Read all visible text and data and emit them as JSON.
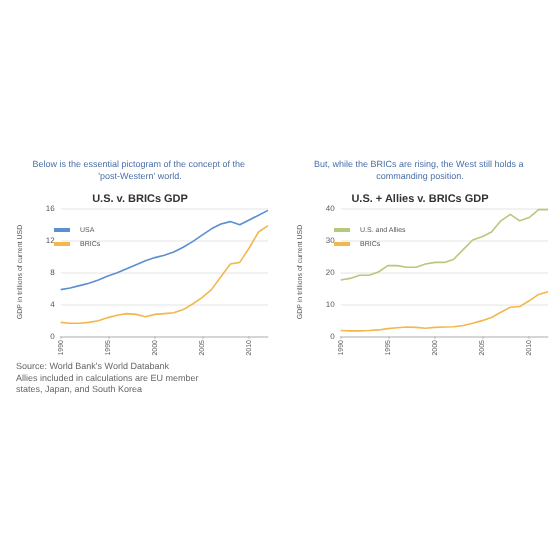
{
  "chart_data": [
    {
      "type": "line",
      "subtitle": "Below is the essential pictogram of the concept of the 'post-Western' world.",
      "title": "U.S. v. BRICs GDP",
      "ylabel": "GDP in trillions of current USD",
      "x": [
        1990,
        1991,
        1992,
        1993,
        1994,
        1995,
        1996,
        1997,
        1998,
        1999,
        2000,
        2001,
        2002,
        2003,
        2004,
        2005,
        2006,
        2007,
        2008,
        2009,
        2010,
        2011,
        2012
      ],
      "series": [
        {
          "name": "USA",
          "color": "#5b8fd0",
          "values": [
            5.8,
            6.0,
            6.3,
            6.6,
            7.0,
            7.5,
            7.9,
            8.4,
            8.9,
            9.4,
            9.8,
            10.1,
            10.5,
            11.1,
            11.8,
            12.6,
            13.4,
            14.0,
            14.3,
            13.9,
            14.5,
            15.1,
            15.7
          ]
        },
        {
          "name": "BRICs",
          "color": "#f2b84b",
          "values": [
            1.7,
            1.6,
            1.6,
            1.7,
            1.9,
            2.3,
            2.6,
            2.8,
            2.7,
            2.4,
            2.7,
            2.8,
            2.9,
            3.3,
            4.0,
            4.8,
            5.8,
            7.4,
            9.0,
            9.2,
            11.0,
            13.0,
            13.8
          ]
        }
      ],
      "xlim": [
        1990,
        2012
      ],
      "xticks": [
        1990,
        1995,
        2000,
        2005,
        2010
      ],
      "ylim": [
        0,
        16
      ],
      "yticks": [
        0,
        4,
        8,
        12,
        16
      ],
      "grid": "y",
      "legend": "top left",
      "marker": "none",
      "annotations": [
        "Source: World Bank's World Databank",
        "Allies included in calculations are EU member states, Japan, and South Korea"
      ]
    },
    {
      "type": "line",
      "subtitle": "But, while the BRICs are rising, the West still holds a commanding position.",
      "title": "U.S. + Allies v. BRICs GDP",
      "ylabel": "GDP in trillions of current USD",
      "x": [
        1990,
        1991,
        1992,
        1993,
        1994,
        1995,
        1996,
        1997,
        1998,
        1999,
        2000,
        2001,
        2002,
        2003,
        2004,
        2005,
        2006,
        2007,
        2008,
        2009,
        2010,
        2011,
        2012
      ],
      "series": [
        {
          "name": "U.S. and Allies",
          "color": "#b5c97a",
          "values": [
            17.5,
            18,
            19,
            19,
            20,
            22,
            22,
            21.5,
            21.5,
            22.5,
            23,
            23,
            24,
            27,
            30,
            31,
            32.5,
            36,
            38,
            36,
            37,
            39.5,
            39.5
          ]
        },
        {
          "name": "BRICs",
          "color": "#f2b84b",
          "values": [
            1.7,
            1.6,
            1.6,
            1.7,
            1.9,
            2.3,
            2.6,
            2.8,
            2.7,
            2.4,
            2.7,
            2.8,
            2.9,
            3.3,
            4.0,
            4.8,
            5.8,
            7.4,
            9.0,
            9.2,
            11.0,
            13.0,
            13.8
          ]
        }
      ],
      "xlim": [
        1990,
        2012
      ],
      "xticks": [
        1990,
        1995,
        2000,
        2005,
        2010
      ],
      "ylim": [
        0,
        40
      ],
      "yticks": [
        0,
        10,
        20,
        30,
        40
      ],
      "grid": "y",
      "legend": "top left",
      "marker": "none"
    }
  ]
}
